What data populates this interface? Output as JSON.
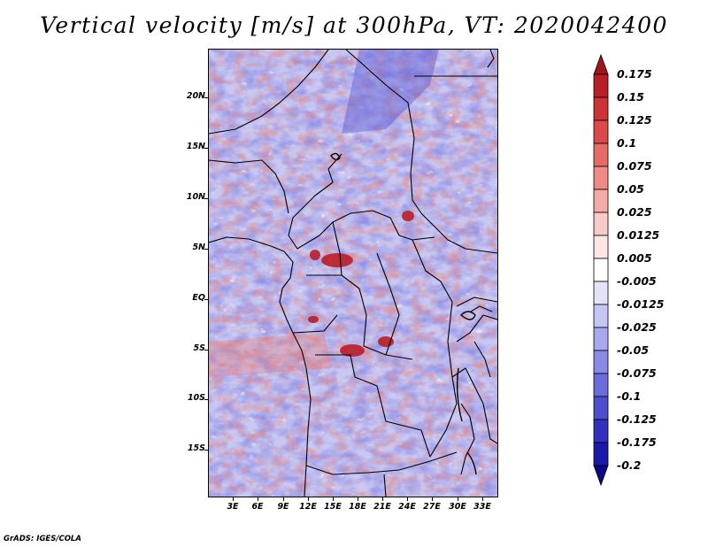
{
  "title": "Vertical velocity [m/s] at 300hPa, VT: 2020042400",
  "credit": "GrADS: IGES/COLA",
  "map": {
    "lon_range": [
      0,
      36
    ],
    "lat_range": [
      -20,
      24.5
    ],
    "lat_ticks": [
      "20N",
      "15N",
      "10N",
      "5N",
      "EQ",
      "5S",
      "10S",
      "15S"
    ],
    "lat_values": [
      20,
      15,
      10,
      5,
      0,
      -5,
      -10,
      -15
    ],
    "lon_ticks": [
      "3E",
      "6E",
      "9E",
      "12E",
      "15E",
      "18E",
      "21E",
      "24E",
      "27E",
      "30E",
      "33E"
    ],
    "lon_values": [
      3,
      6,
      9,
      12,
      15,
      18,
      21,
      24,
      27,
      30,
      33
    ]
  },
  "colorbar": {
    "labels": [
      "0.175",
      "0.15",
      "0.125",
      "0.1",
      "0.075",
      "0.05",
      "0.025",
      "0.0125",
      "0.005",
      "-0.005",
      "-0.0125",
      "-0.025",
      "-0.05",
      "-0.075",
      "-0.1",
      "-0.125",
      "-0.175",
      "-0.2"
    ],
    "colors": [
      "#a0141e",
      "#b81e26",
      "#cf3236",
      "#dc4a48",
      "#e86c66",
      "#ef8b84",
      "#f5aba5",
      "#f9cbc7",
      "#fce6e4",
      "#ffffff",
      "#e2e2fa",
      "#c6c6f5",
      "#a8a8ef",
      "#8a8ae6",
      "#6b6bdc",
      "#4d4dd0",
      "#3131bf",
      "#1a1aa8",
      "#0a0a86"
    ]
  }
}
